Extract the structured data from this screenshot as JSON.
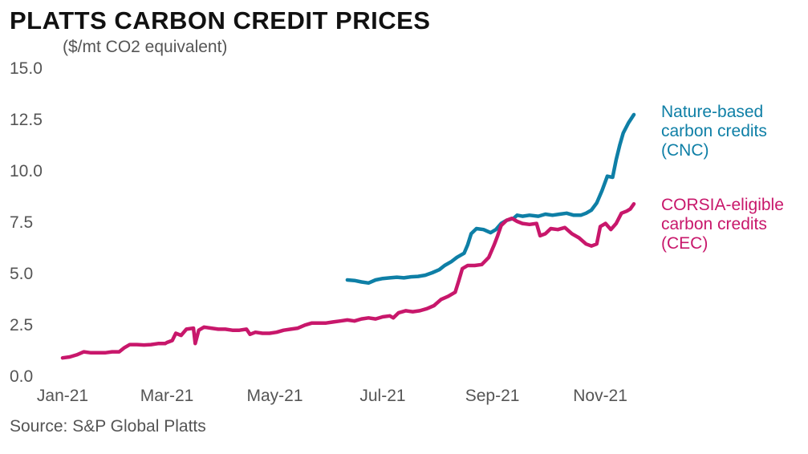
{
  "header": {
    "title": "PLATTS CARBON CREDIT PRICES",
    "subtitle": "($/mt CO2 equivalent)"
  },
  "footer": {
    "source": "Source: S&P Global Platts"
  },
  "chart_data": {
    "type": "line",
    "title": "PLATTS CARBON CREDIT PRICES",
    "ylabel": "($/mt CO2 equivalent)",
    "ylim": [
      0,
      15
    ],
    "yticks": [
      "0.0",
      "2.5",
      "5.0",
      "7.5",
      "10.0",
      "12.5",
      "15.0"
    ],
    "xlim": [
      "2021-01-01",
      "2021-11-30"
    ],
    "xticks": [
      {
        "label": "Jan-21",
        "date": "2021-01-01"
      },
      {
        "label": "Mar-21",
        "date": "2021-03-01"
      },
      {
        "label": "May-21",
        "date": "2021-05-01"
      },
      {
        "label": "Jul-21",
        "date": "2021-07-01"
      },
      {
        "label": "Sep-21",
        "date": "2021-09-01"
      },
      {
        "label": "Nov-21",
        "date": "2021-11-01"
      }
    ],
    "grid": false,
    "legend": "inline-right",
    "series": [
      {
        "name": "Nature-based carbon credits (CNC)",
        "label_lines": [
          "Nature-based",
          "carbon credits",
          "(CNC)"
        ],
        "color": "#0e7fa6",
        "points": [
          [
            "2021-06-11",
            4.65
          ],
          [
            "2021-06-15",
            4.62
          ],
          [
            "2021-06-19",
            4.55
          ],
          [
            "2021-06-23",
            4.5
          ],
          [
            "2021-06-27",
            4.65
          ],
          [
            "2021-07-01",
            4.72
          ],
          [
            "2021-07-05",
            4.75
          ],
          [
            "2021-07-09",
            4.78
          ],
          [
            "2021-07-13",
            4.75
          ],
          [
            "2021-07-17",
            4.8
          ],
          [
            "2021-07-21",
            4.82
          ],
          [
            "2021-07-25",
            4.88
          ],
          [
            "2021-07-29",
            5.0
          ],
          [
            "2021-08-02",
            5.15
          ],
          [
            "2021-08-05",
            5.35
          ],
          [
            "2021-08-09",
            5.55
          ],
          [
            "2021-08-12",
            5.75
          ],
          [
            "2021-08-16",
            5.95
          ],
          [
            "2021-08-18",
            6.35
          ],
          [
            "2021-08-20",
            6.9
          ],
          [
            "2021-08-23",
            7.15
          ],
          [
            "2021-08-27",
            7.1
          ],
          [
            "2021-08-31",
            6.95
          ],
          [
            "2021-09-03",
            7.1
          ],
          [
            "2021-09-06",
            7.4
          ],
          [
            "2021-09-09",
            7.55
          ],
          [
            "2021-09-13",
            7.65
          ],
          [
            "2021-09-15",
            7.8
          ],
          [
            "2021-09-18",
            7.75
          ],
          [
            "2021-09-22",
            7.8
          ],
          [
            "2021-09-27",
            7.75
          ],
          [
            "2021-10-01",
            7.85
          ],
          [
            "2021-10-05",
            7.8
          ],
          [
            "2021-10-09",
            7.85
          ],
          [
            "2021-10-13",
            7.9
          ],
          [
            "2021-10-17",
            7.8
          ],
          [
            "2021-10-21",
            7.8
          ],
          [
            "2021-10-24",
            7.9
          ],
          [
            "2021-10-27",
            8.05
          ],
          [
            "2021-10-30",
            8.4
          ],
          [
            "2021-11-02",
            9.0
          ],
          [
            "2021-11-05",
            9.7
          ],
          [
            "2021-11-08",
            9.65
          ],
          [
            "2021-11-10",
            10.5
          ],
          [
            "2021-11-12",
            11.2
          ],
          [
            "2021-11-14",
            11.8
          ],
          [
            "2021-11-17",
            12.3
          ],
          [
            "2021-11-20",
            12.7
          ]
        ]
      },
      {
        "name": "CORSIA-eligible carbon credits (CEC)",
        "label_lines": [
          "CORSIA-eligible",
          "carbon credits",
          "(CEC)"
        ],
        "color": "#c8176b",
        "points": [
          [
            "2021-01-01",
            0.85
          ],
          [
            "2021-01-05",
            0.9
          ],
          [
            "2021-01-09",
            1.0
          ],
          [
            "2021-01-13",
            1.15
          ],
          [
            "2021-01-17",
            1.1
          ],
          [
            "2021-01-21",
            1.1
          ],
          [
            "2021-01-25",
            1.1
          ],
          [
            "2021-01-29",
            1.15
          ],
          [
            "2021-02-02",
            1.15
          ],
          [
            "2021-02-05",
            1.35
          ],
          [
            "2021-02-08",
            1.5
          ],
          [
            "2021-02-12",
            1.5
          ],
          [
            "2021-02-16",
            1.48
          ],
          [
            "2021-02-20",
            1.5
          ],
          [
            "2021-02-24",
            1.55
          ],
          [
            "2021-02-28",
            1.55
          ],
          [
            "2021-03-01",
            1.6
          ],
          [
            "2021-03-04",
            1.7
          ],
          [
            "2021-03-06",
            2.05
          ],
          [
            "2021-03-09",
            1.95
          ],
          [
            "2021-03-12",
            2.25
          ],
          [
            "2021-03-16",
            2.3
          ],
          [
            "2021-03-17",
            1.55
          ],
          [
            "2021-03-19",
            2.2
          ],
          [
            "2021-03-22",
            2.35
          ],
          [
            "2021-03-26",
            2.3
          ],
          [
            "2021-03-30",
            2.25
          ],
          [
            "2021-04-03",
            2.25
          ],
          [
            "2021-04-07",
            2.2
          ],
          [
            "2021-04-11",
            2.2
          ],
          [
            "2021-04-15",
            2.25
          ],
          [
            "2021-04-17",
            2.0
          ],
          [
            "2021-04-20",
            2.1
          ],
          [
            "2021-04-24",
            2.05
          ],
          [
            "2021-04-28",
            2.05
          ],
          [
            "2021-05-02",
            2.1
          ],
          [
            "2021-05-06",
            2.2
          ],
          [
            "2021-05-10",
            2.25
          ],
          [
            "2021-05-14",
            2.3
          ],
          [
            "2021-05-18",
            2.45
          ],
          [
            "2021-05-22",
            2.55
          ],
          [
            "2021-05-26",
            2.55
          ],
          [
            "2021-05-30",
            2.55
          ],
          [
            "2021-06-03",
            2.6
          ],
          [
            "2021-06-07",
            2.65
          ],
          [
            "2021-06-11",
            2.7
          ],
          [
            "2021-06-15",
            2.65
          ],
          [
            "2021-06-19",
            2.75
          ],
          [
            "2021-06-23",
            2.8
          ],
          [
            "2021-06-27",
            2.75
          ],
          [
            "2021-07-01",
            2.85
          ],
          [
            "2021-07-05",
            2.9
          ],
          [
            "2021-07-07",
            2.8
          ],
          [
            "2021-07-10",
            3.05
          ],
          [
            "2021-07-14",
            3.15
          ],
          [
            "2021-07-18",
            3.1
          ],
          [
            "2021-07-22",
            3.15
          ],
          [
            "2021-07-26",
            3.25
          ],
          [
            "2021-07-30",
            3.4
          ],
          [
            "2021-08-03",
            3.7
          ],
          [
            "2021-08-07",
            3.85
          ],
          [
            "2021-08-11",
            4.05
          ],
          [
            "2021-08-13",
            4.6
          ],
          [
            "2021-08-15",
            5.2
          ],
          [
            "2021-08-18",
            5.35
          ],
          [
            "2021-08-22",
            5.35
          ],
          [
            "2021-08-26",
            5.4
          ],
          [
            "2021-08-30",
            5.75
          ],
          [
            "2021-09-02",
            6.35
          ],
          [
            "2021-09-04",
            6.8
          ],
          [
            "2021-09-06",
            7.3
          ],
          [
            "2021-09-09",
            7.55
          ],
          [
            "2021-09-12",
            7.65
          ],
          [
            "2021-09-15",
            7.5
          ],
          [
            "2021-09-18",
            7.4
          ],
          [
            "2021-09-22",
            7.35
          ],
          [
            "2021-09-26",
            7.4
          ],
          [
            "2021-09-28",
            6.8
          ],
          [
            "2021-10-01",
            6.9
          ],
          [
            "2021-10-04",
            7.15
          ],
          [
            "2021-10-08",
            7.1
          ],
          [
            "2021-10-12",
            7.2
          ],
          [
            "2021-10-16",
            6.9
          ],
          [
            "2021-10-20",
            6.7
          ],
          [
            "2021-10-24",
            6.4
          ],
          [
            "2021-10-27",
            6.3
          ],
          [
            "2021-10-30",
            6.4
          ],
          [
            "2021-11-01",
            7.25
          ],
          [
            "2021-11-04",
            7.4
          ],
          [
            "2021-11-07",
            7.1
          ],
          [
            "2021-11-10",
            7.4
          ],
          [
            "2021-11-13",
            7.9
          ],
          [
            "2021-11-16",
            8.0
          ],
          [
            "2021-11-18",
            8.1
          ],
          [
            "2021-11-20",
            8.35
          ]
        ]
      }
    ]
  }
}
